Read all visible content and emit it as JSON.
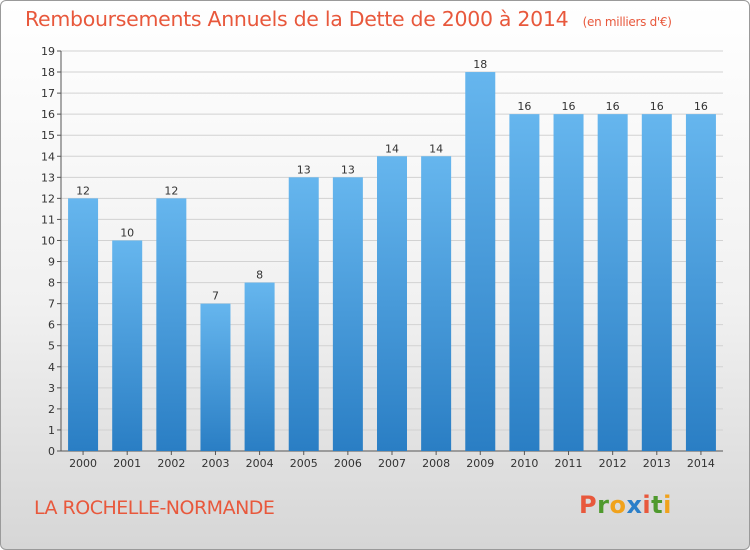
{
  "title": "Remboursements Annuels de la Dette de 2000 à 2014",
  "unit_note": "(en milliers d'€)",
  "commune": "LA ROCHELLE-NORMANDE",
  "logo": {
    "letters": [
      "P",
      "r",
      "o",
      "x",
      "i",
      "t",
      "i"
    ],
    "colors": [
      "#e8583c",
      "#4f9a2e",
      "#f0a21c",
      "#2b7fc9",
      "#e8583c",
      "#4f9a2e",
      "#f0a21c"
    ]
  },
  "colors": {
    "bar_top": "#66b6ee",
    "bar_bottom": "#2a7ec4",
    "title": "#e8583c"
  },
  "chart_data": {
    "type": "bar",
    "categories": [
      "2000",
      "2001",
      "2002",
      "2003",
      "2004",
      "2005",
      "2006",
      "2007",
      "2008",
      "2009",
      "2010",
      "2011",
      "2012",
      "2013",
      "2014"
    ],
    "values": [
      12,
      10,
      12,
      7,
      8,
      13,
      13,
      14,
      14,
      18,
      16,
      16,
      16,
      16,
      16
    ],
    "ylim": [
      0,
      19
    ],
    "yticks": [
      0,
      1,
      2,
      3,
      4,
      5,
      6,
      7,
      8,
      9,
      10,
      11,
      12,
      13,
      14,
      15,
      16,
      17,
      18,
      19
    ],
    "grid": true
  }
}
